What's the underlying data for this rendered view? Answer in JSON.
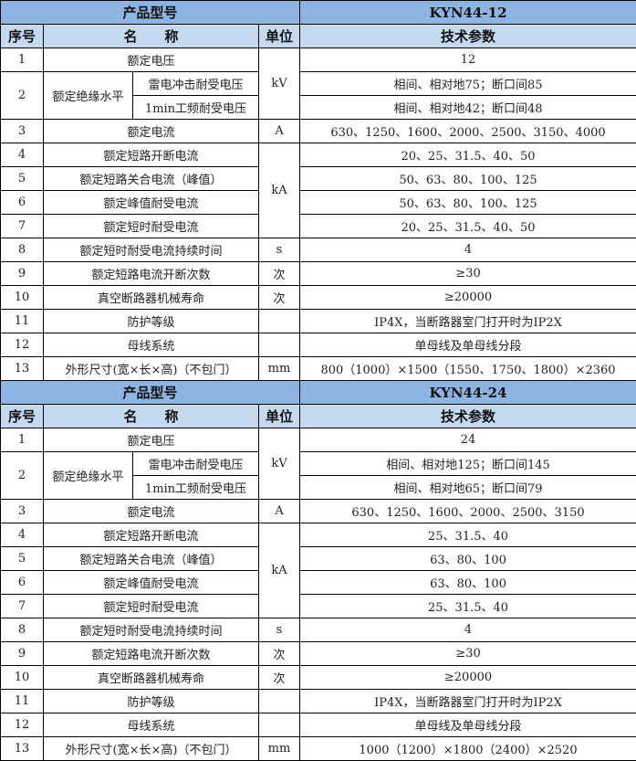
{
  "colors": {
    "header": "#8db4e2",
    "subheader": "#c5d9f1"
  },
  "headers": {
    "model": "产品型号",
    "no": "序号",
    "name": "名　　称",
    "unit": "单位",
    "params": "技术参数"
  },
  "tables": [
    {
      "model": "KYN44-12",
      "rows": [
        {
          "no": "1",
          "name": "额定电压",
          "unit": "kV",
          "value": "12"
        },
        {
          "no": "2",
          "name": "额定绝缘水平",
          "sub": [
            "雷电冲击耐受电压",
            "1min工频耐受电压"
          ],
          "values": [
            "相间、相对地75；断口间85",
            "相间、相对地42；断口间48"
          ]
        },
        {
          "no": "3",
          "name": "额定电流",
          "unit": "A",
          "value": "630、1250、1600、2000、2500、3150、4000"
        },
        {
          "no": "4",
          "name": "额定短路开断电流",
          "unit": "kA",
          "value": "20、25、31.5、40、50"
        },
        {
          "no": "5",
          "name": "额定短路关合电流（峰值）",
          "value": "50、63、80、100、125"
        },
        {
          "no": "6",
          "name": "额定峰值耐受电流",
          "value": "50、63、80、100、125"
        },
        {
          "no": "7",
          "name": "额定短时耐受电流",
          "value": "20、25、31.5、40、50"
        },
        {
          "no": "8",
          "name": "额定短时耐受电流持续时间",
          "unit": "s",
          "value": "4"
        },
        {
          "no": "9",
          "name": "额定短路电流开断次数",
          "unit": "次",
          "value": "≥30"
        },
        {
          "no": "10",
          "name": "真空断路器机械寿命",
          "unit": "次",
          "value": "≥20000"
        },
        {
          "no": "11",
          "name": "防护等级",
          "unit": "",
          "value": "IP4X，当断路器室门打开时为IP2X"
        },
        {
          "no": "12",
          "name": "母线系统",
          "unit": "",
          "value": "单母线及单母线分段"
        },
        {
          "no": "13",
          "name": "外形尺寸(宽×长×高)（不包门）",
          "unit": "mm",
          "value": "800（1000）×1500（1550、1750、1800）×2360"
        }
      ]
    },
    {
      "model": "KYN44-24",
      "rows": [
        {
          "no": "1",
          "name": "额定电压",
          "unit": "kV",
          "value": "24"
        },
        {
          "no": "2",
          "name": "额定绝缘水平",
          "sub": [
            "雷电冲击耐受电压",
            "1min工频耐受电压"
          ],
          "values": [
            "相间、相对地125；断口间145",
            "相间、相对地65；断口间79"
          ]
        },
        {
          "no": "3",
          "name": "额定电流",
          "unit": "A",
          "value": "630、1250、1600、2000、2500、3150"
        },
        {
          "no": "4",
          "name": "额定短路开断电流",
          "unit": "kA",
          "value": "25、31.5、40"
        },
        {
          "no": "5",
          "name": "额定短路关合电流（峰值）",
          "value": "63、80、100"
        },
        {
          "no": "6",
          "name": "额定峰值耐受电流",
          "value": "63、80、100"
        },
        {
          "no": "7",
          "name": "额定短时耐受电流",
          "value": "25、31.5、40"
        },
        {
          "no": "8",
          "name": "额定短时耐受电流持续时间",
          "unit": "s",
          "value": "4"
        },
        {
          "no": "9",
          "name": "额定短路电流开断次数",
          "unit": "次",
          "value": "≥30"
        },
        {
          "no": "10",
          "name": "真空断路器机械寿命",
          "unit": "次",
          "value": "≥20000"
        },
        {
          "no": "11",
          "name": "防护等级",
          "unit": "",
          "value": "IP4X，当断路器室门打开时为IP2X"
        },
        {
          "no": "12",
          "name": "母线系统",
          "unit": "",
          "value": "单母线及单母线分段"
        },
        {
          "no": "13",
          "name": "外形尺寸(宽×长×高)（不包门）",
          "unit": "mm",
          "value": "1000（1200）×1800（2400）×2520"
        }
      ]
    }
  ]
}
